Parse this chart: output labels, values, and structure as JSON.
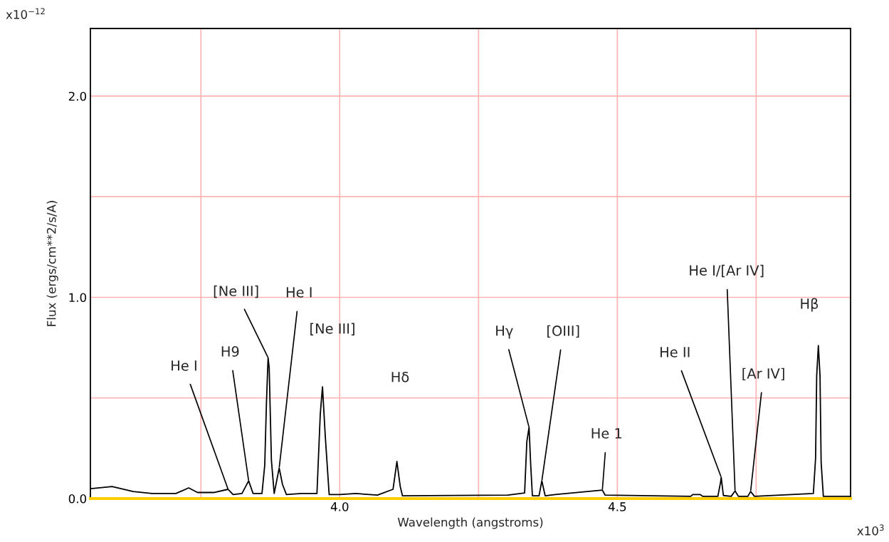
{
  "chart_data": {
    "type": "line",
    "xlabel": "Wavelength (angstroms)",
    "ylabel": "Flux (ergs/cm**2/s/A)",
    "xlim": [
      3.551,
      4.92
    ],
    "ylim": [
      0,
      2.336
    ],
    "xticks": [
      {
        "value": 3.75,
        "label": null
      },
      {
        "value": 4.0,
        "label": "4.0"
      },
      {
        "value": 4.25,
        "label": null
      },
      4.5,
      {
        "value": 4.75,
        "label": null
      }
    ],
    "yticks": [
      {
        "value": 0,
        "label": "0.0"
      },
      {
        "value": 0.5,
        "label": null
      },
      {
        "value": 1,
        "label": "1.0"
      },
      {
        "value": 1.5,
        "label": null
      },
      {
        "value": 2,
        "label": "2.0"
      }
    ],
    "grid": true,
    "line_style": "solid",
    "series": [
      {
        "color": "#000000",
        "x": [
          3.551,
          3.555,
          3.59,
          3.628,
          3.662,
          3.705,
          3.728,
          3.744,
          3.773,
          3.799,
          3.808,
          3.824,
          3.836,
          3.844,
          3.86,
          3.865,
          3.868,
          3.871,
          3.873,
          3.877,
          3.882,
          3.891,
          3.897,
          3.904,
          3.931,
          3.959,
          3.965,
          3.969,
          3.974,
          3.981,
          4.0,
          4.029,
          4.068,
          4.096,
          4.103,
          4.109,
          4.113,
          4.303,
          4.333,
          4.337,
          4.341,
          4.344,
          4.347,
          4.359,
          4.364,
          4.37,
          4.388,
          4.473,
          4.478,
          4.632,
          4.636,
          4.649,
          4.654,
          4.681,
          4.686,
          4.687,
          4.691,
          4.705,
          4.712,
          4.718,
          4.735,
          4.74,
          4.747,
          4.853,
          4.857,
          4.859,
          4.862,
          4.865,
          4.867,
          4.871,
          4.918
        ],
        "values": [
          0.05,
          0.05,
          0.06,
          0.035,
          0.025,
          0.025,
          0.053,
          0.03,
          0.03,
          0.046,
          0.02,
          0.025,
          0.088,
          0.025,
          0.025,
          0.166,
          0.47,
          0.7,
          0.65,
          0.19,
          0.025,
          0.152,
          0.07,
          0.02,
          0.025,
          0.025,
          0.42,
          0.555,
          0.31,
          0.02,
          0.02,
          0.025,
          0.017,
          0.046,
          0.184,
          0.06,
          0.014,
          0.017,
          0.028,
          0.283,
          0.354,
          0.166,
          0.014,
          0.014,
          0.088,
          0.014,
          0.02,
          0.042,
          0.017,
          0.011,
          0.02,
          0.02,
          0.011,
          0.011,
          0.083,
          0.106,
          0.015,
          0.011,
          0.038,
          0.011,
          0.011,
          0.035,
          0.011,
          0.025,
          0.2,
          0.61,
          0.76,
          0.61,
          0.18,
          0.011,
          0.011
        ]
      }
    ],
    "annotations": [
      "x10$^{−12}$",
      "x10$^{3}$",
      {
        "text": "He I",
        "x": 3.799,
        "y": 0.046
      },
      {
        "text": "H9",
        "x": 3.836,
        "y": 0.088
      },
      {
        "text": "[Ne III]",
        "x": 3.871,
        "y": 0.7
      },
      {
        "text": "He I",
        "x": 3.891,
        "y": 0.152
      },
      "[Ne III]",
      "Hδ",
      "Hβ",
      {
        "text": "Hγ",
        "x": 4.341,
        "y": 0.354
      },
      {
        "text": "[OIII]",
        "x": 4.364,
        "y": 0.088
      },
      {
        "text": "He 1",
        "x": 4.473,
        "y": 0.042
      },
      {
        "text": "He II",
        "x": 4.687,
        "y": 0.106
      },
      {
        "text": "He I/[Ar IV]",
        "x": 4.712,
        "y": 0.038
      },
      {
        "text": "[Ar IV]",
        "x": 4.74,
        "y": 0.035
      }
    ]
  }
}
